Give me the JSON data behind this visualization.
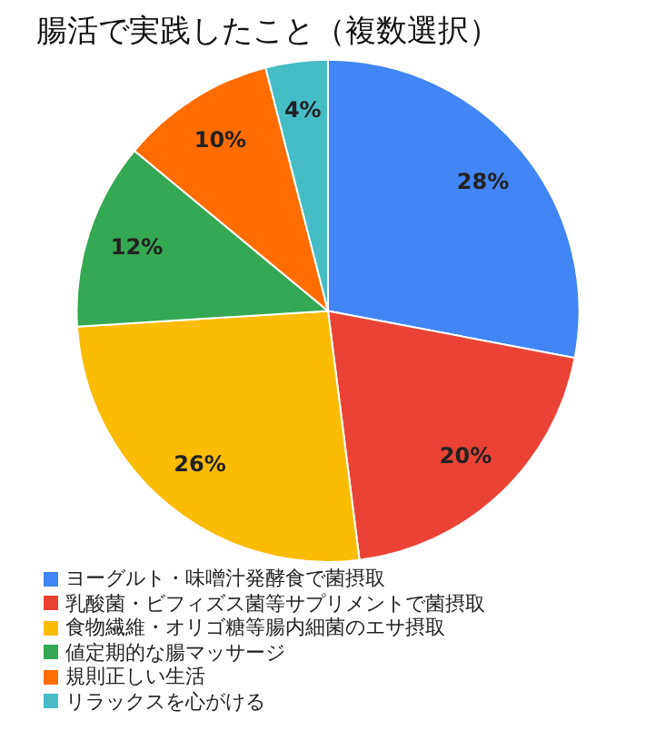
{
  "chart_data": {
    "type": "pie",
    "title": "腸活で実践したこと（複数選択）",
    "categories": [
      "ヨーグルト・味噌汁発酵食で菌摂取",
      "乳酸菌・ビフィズス菌等サプリメントで菌摂取",
      "食物繊維・オリゴ糖等腸内細菌のエサ摂取",
      "値定期的な腸マッサージ",
      "規則正しい生活",
      "リラックスを心がける"
    ],
    "values": [
      28,
      20,
      26,
      12,
      10,
      4
    ],
    "value_labels": [
      "28%",
      "20%",
      "26%",
      "12%",
      "10%",
      "4%"
    ],
    "colors": [
      "#4285f4",
      "#ea4335",
      "#fbbc04",
      "#34a853",
      "#ff6d01",
      "#46bdc6"
    ],
    "legend": "bottom"
  }
}
